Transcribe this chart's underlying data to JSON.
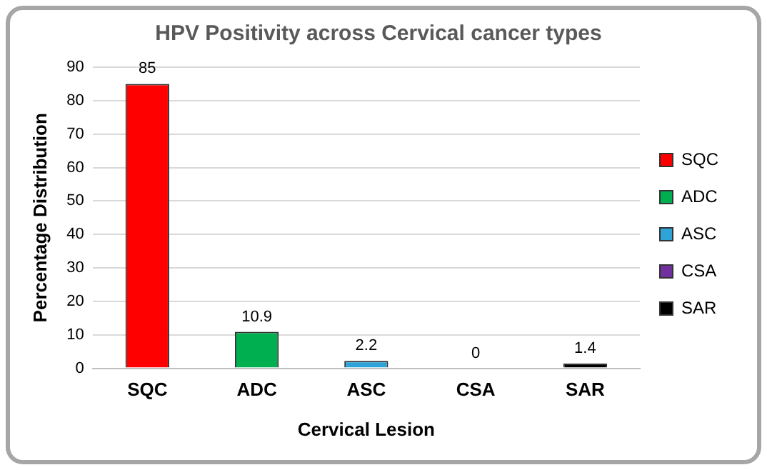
{
  "chart_data": {
    "type": "bar",
    "title": "HPV Positivity across Cervical cancer types",
    "xlabel": "Cervical Lesion",
    "ylabel": "Percentage Distribution",
    "categories": [
      "SQC",
      "ADC",
      "ASC",
      "CSA",
      "SAR"
    ],
    "series": [
      {
        "name": "SQC",
        "color": "#ff0000",
        "values": [
          85,
          null,
          null,
          null,
          null
        ]
      },
      {
        "name": "ADC",
        "color": "#00b050",
        "values": [
          null,
          10.9,
          null,
          null,
          null
        ]
      },
      {
        "name": "ASC",
        "color": "#2ea3d8",
        "values": [
          null,
          null,
          2.2,
          null,
          null
        ]
      },
      {
        "name": "CSA",
        "color": "#7030a0",
        "values": [
          null,
          null,
          null,
          0,
          null
        ]
      },
      {
        "name": "SAR",
        "color": "#000000",
        "values": [
          null,
          null,
          null,
          null,
          1.4
        ]
      }
    ],
    "ylim": [
      0,
      90
    ],
    "yticks": [
      0,
      10,
      20,
      30,
      40,
      50,
      60,
      70,
      80,
      90
    ],
    "grid": "y",
    "legend": "right",
    "data_labels": true
  }
}
